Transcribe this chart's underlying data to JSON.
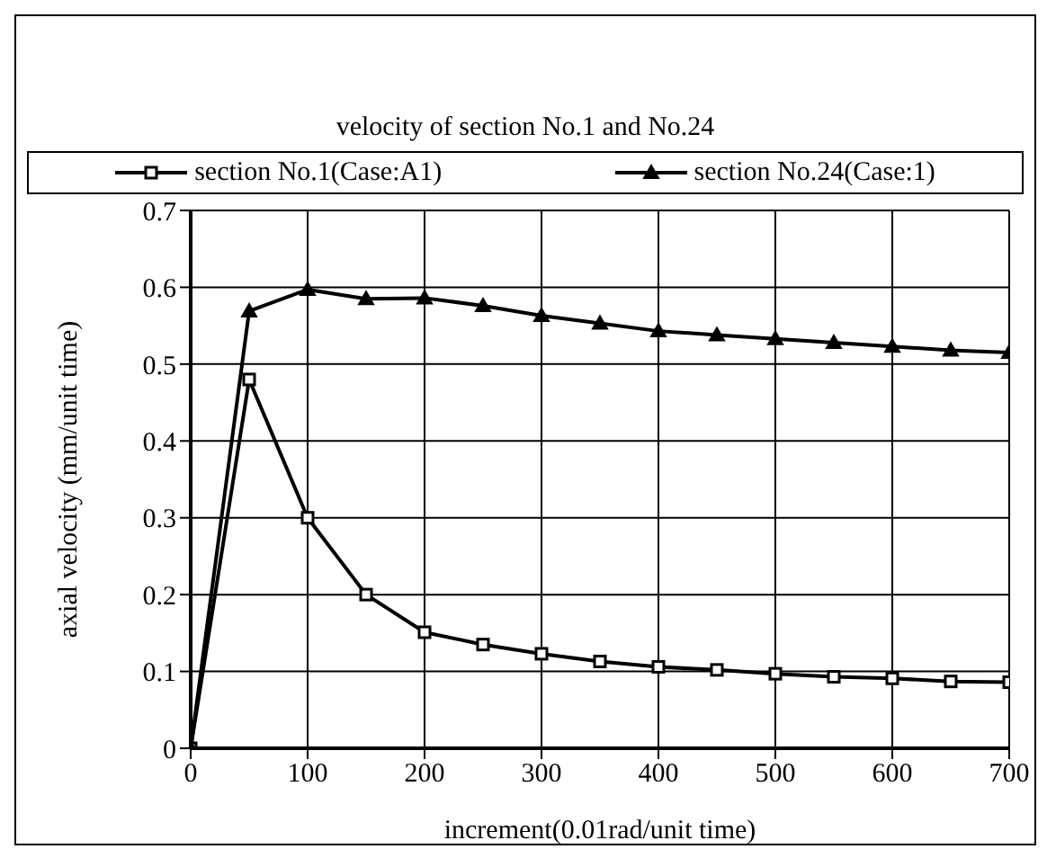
{
  "chart_data": {
    "type": "line",
    "title": "velocity of section No.1 and No.24",
    "xlabel": "increment(0.01rad/unit time)",
    "ylabel": "axial velocity (mm/unit time)",
    "x": [
      0,
      50,
      100,
      150,
      200,
      250,
      300,
      350,
      400,
      450,
      500,
      550,
      600,
      650,
      700
    ],
    "series": [
      {
        "name": "section No.1(Case:A1)",
        "color": "#000000",
        "marker": "square",
        "values": [
          0,
          0.48,
          0.3,
          0.2,
          0.151,
          0.135,
          0.123,
          0.113,
          0.106,
          0.102,
          0.097,
          0.093,
          0.091,
          0.087,
          0.086
        ]
      },
      {
        "name": "section No.24(Case:1)",
        "color": "#000000",
        "marker": "triangle",
        "values": [
          0,
          0.569,
          0.597,
          0.585,
          0.586,
          0.576,
          0.563,
          0.553,
          0.543,
          0.538,
          0.533,
          0.528,
          0.523,
          0.518,
          0.515
        ]
      }
    ],
    "xlim": [
      0,
      700
    ],
    "xticks": [
      0,
      100,
      200,
      300,
      400,
      500,
      600,
      700
    ],
    "ylim": [
      0,
      0.7
    ],
    "yticks": [
      0,
      0.1,
      0.2,
      0.3,
      0.4,
      0.5,
      0.6,
      0.7
    ],
    "grid": true,
    "legend": "top",
    "line_style": "solid"
  }
}
